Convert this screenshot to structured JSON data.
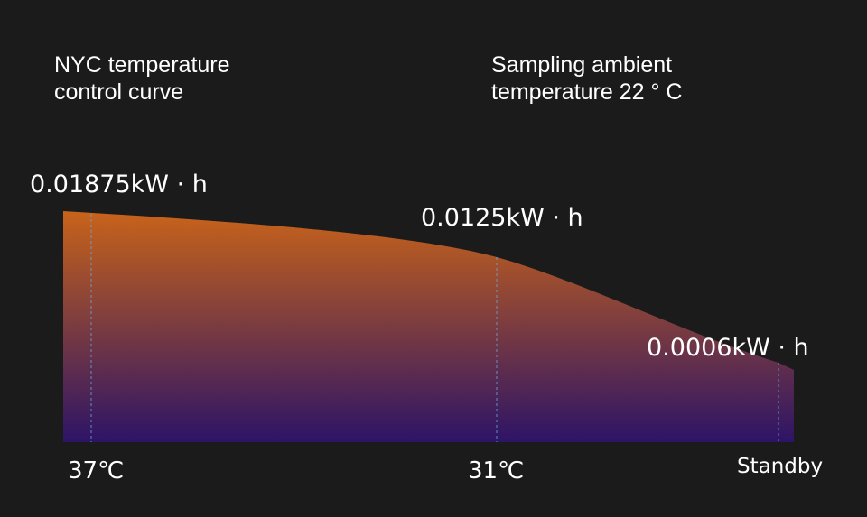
{
  "titles": {
    "left": "NYC temperature control curve",
    "right": "Sampling ambient temperature 22 ° C"
  },
  "colors": {
    "background": "#1b1b1b",
    "gradient_top": "#c8631a",
    "gradient_bottom": "#2d1466",
    "guide_line": "#6aa8e0"
  },
  "chart_data": {
    "type": "area",
    "title": "NYC temperature control curve",
    "subtitle": "Sampling ambient temperature 22 ° C",
    "categories": [
      "37℃",
      "31℃",
      "Standby"
    ],
    "values": [
      0.01875,
      0.0125,
      0.0006
    ],
    "value_labels": [
      "0.01875kW · h",
      "0.0125kW · h",
      "0.0006kW · h"
    ],
    "unit": "kW · h",
    "grid": false,
    "legend": "none"
  }
}
